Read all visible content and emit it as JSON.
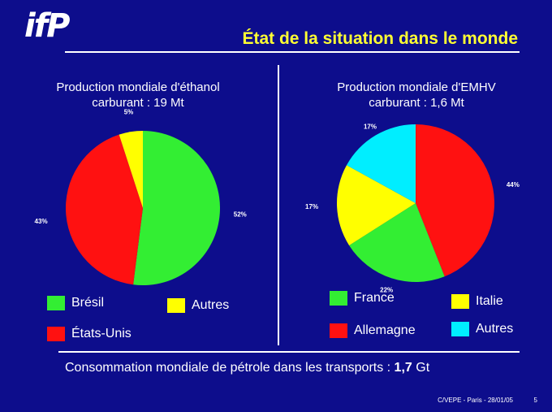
{
  "logo": "ifP",
  "header": {
    "title": "État de la situation dans le monde"
  },
  "chart_data": [
    {
      "type": "pie",
      "title_line1": "Production mondiale d'éthanol",
      "title_line2": "carburant : 19 Mt",
      "categories": [
        "Brésil",
        "États-Unis",
        "Autres"
      ],
      "values": [
        52,
        43,
        5
      ],
      "labels": [
        "52%",
        "43%",
        "5%"
      ],
      "colors": [
        "#33ee33",
        "#ff1111",
        "#ffff00"
      ]
    },
    {
      "type": "pie",
      "title_line1": "Production mondiale d'EMHV",
      "title_line2": "carburant : 1,6 Mt",
      "categories": [
        "Allemagne",
        "France",
        "Italie",
        "Autres"
      ],
      "values": [
        44,
        22,
        17,
        17
      ],
      "labels": [
        "44%",
        "22%",
        "17%",
        "17%"
      ],
      "colors": [
        "#ff1111",
        "#33ee33",
        "#ffff00",
        "#00eeff"
      ]
    }
  ],
  "bottom": {
    "text": "Consommation mondiale de pétrole dans les transports : ",
    "value": "1,7",
    "unit": " Gt"
  },
  "footer": {
    "text": "C/VEPE - Paris - 28/01/05",
    "page": "5"
  }
}
